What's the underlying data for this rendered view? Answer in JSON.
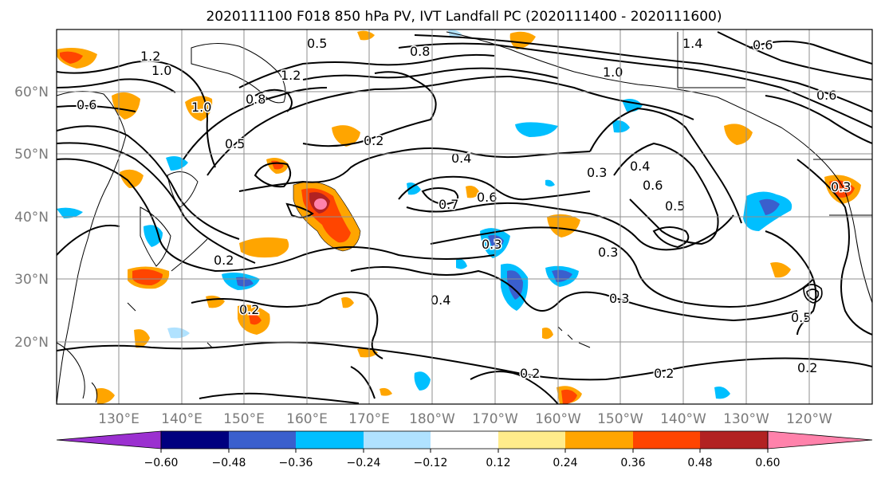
{
  "title": "2020111100 F018 850 hPa PV, IVT Landfall PC (2020111400 - 2020111600)",
  "lat_labels": [
    "60°N",
    "50°N",
    "40°N",
    "30°N",
    "20°N"
  ],
  "lon_labels": [
    "130°E",
    "140°E",
    "150°E",
    "160°E",
    "170°E",
    "180°W",
    "170°W",
    "160°W",
    "150°W",
    "140°W",
    "130°W",
    "120°W"
  ],
  "colorbar": {
    "colors": [
      "#9b30d0",
      "#00007f",
      "#3a5fcd",
      "#00bfff",
      "#b0e2ff",
      "#ffffff",
      "#ffec8b",
      "#ffa500",
      "#ff4500",
      "#b22222",
      "#ff82ab"
    ],
    "tick_labels": [
      "−0.60",
      "−0.48",
      "−0.36",
      "−0.24",
      "−0.12",
      "0.12",
      "0.24",
      "0.36",
      "0.48",
      "0.60"
    ]
  },
  "contour_labels": [
    "0.5",
    "1.2",
    "1.0",
    "0.6",
    "1.0",
    "0.8",
    "1.2",
    "0.8",
    "1.0",
    "1.4",
    "0.6",
    "0.2",
    "0.4",
    "0.7",
    "0.6",
    "0.3",
    "0.4",
    "0.6",
    "0.5",
    "0.2",
    "0.2",
    "0.3",
    "0.3",
    "0.4",
    "0.3",
    "0.5",
    "0.2",
    "0.2",
    "0.2",
    "0.5",
    "0.6",
    "0.3"
  ]
}
